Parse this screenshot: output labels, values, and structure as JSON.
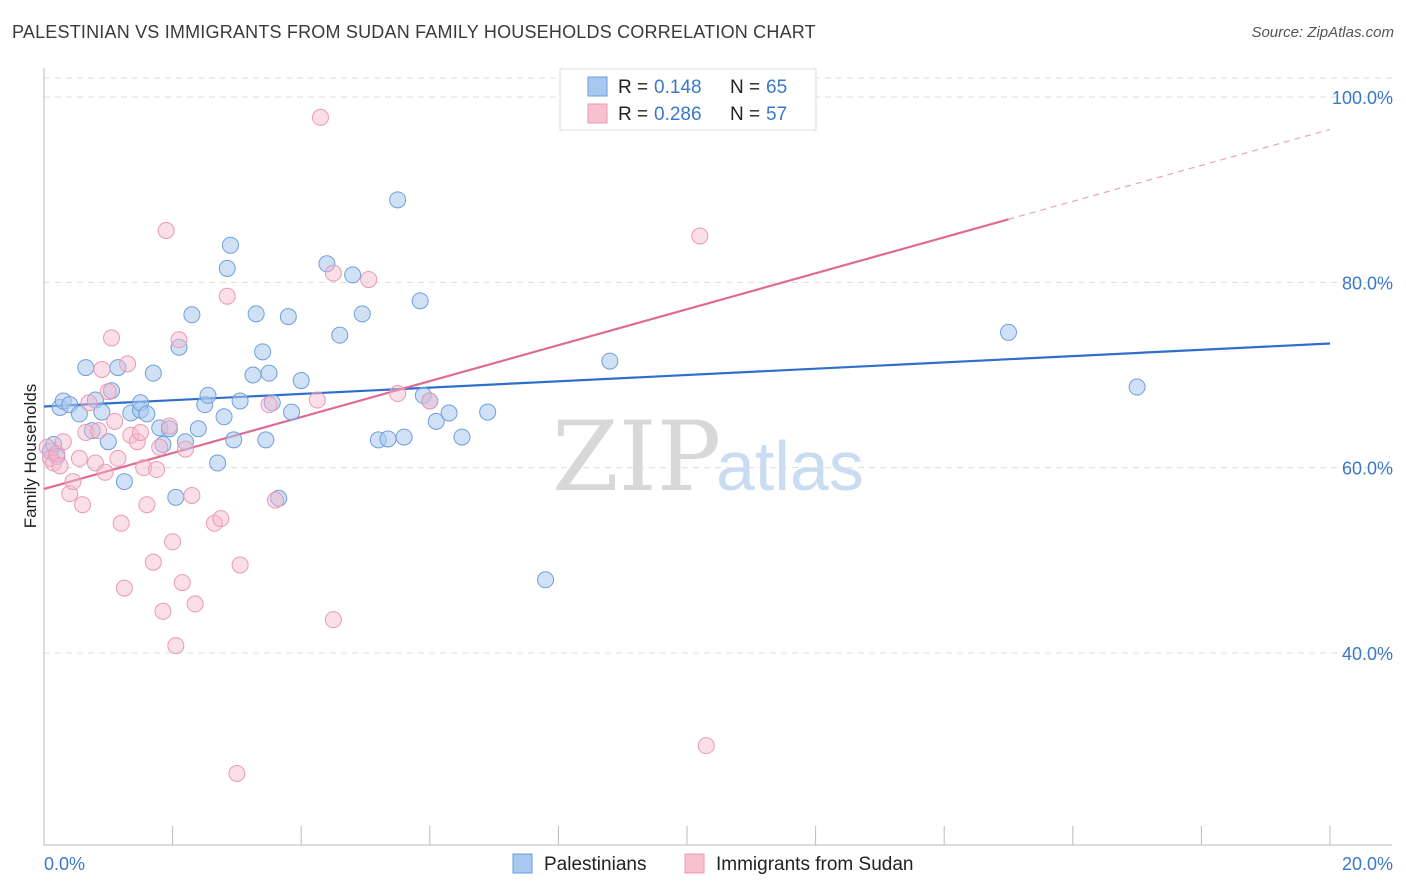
{
  "title": "PALESTINIAN VS IMMIGRANTS FROM SUDAN FAMILY HOUSEHOLDS CORRELATION CHART",
  "source": "Source: ZipAtlas.com",
  "colors": {
    "blue": "#3b78c9",
    "blue_fill": "#a9c8ef",
    "blue_line": "#2f6fcb",
    "pink_fill": "#f7b8cc",
    "pink_line": "#e06a93",
    "grid": "#dddddd"
  },
  "legend": {
    "rows": [
      {
        "r_label": "R =",
        "r_value": "0.148",
        "n_label": "N =",
        "n_value": "65"
      },
      {
        "r_label": "R =",
        "r_value": "0.286",
        "n_label": "N =",
        "n_value": "57"
      }
    ]
  },
  "watermark": {
    "zip": "ZIP",
    "atlas": "atlas"
  },
  "chart_data": {
    "type": "scatter",
    "title": "PALESTINIAN VS IMMIGRANTS FROM SUDAN FAMILY HOUSEHOLDS CORRELATION CHART",
    "xlabel": "",
    "ylabel": "Family Households",
    "x_tick_labels": [
      "0.0%",
      "20.0%"
    ],
    "y_tick_labels": [
      "40.0%",
      "60.0%",
      "80.0%",
      "100.0%"
    ],
    "y_ticks": [
      40,
      60,
      80,
      100
    ],
    "xlim": [
      0,
      20
    ],
    "ylim": [
      20,
      102
    ],
    "grid": true,
    "legend_position": "top-center",
    "series": [
      {
        "name": "Palestinians",
        "color": "#a9c8ef",
        "trend": {
          "x0": 0,
          "y0": 66.6,
          "x1": 20,
          "y1": 73.4,
          "dashed_to": 20
        },
        "points": [
          [
            0.1,
            61.8
          ],
          [
            0.15,
            62.5
          ],
          [
            0.2,
            61.2
          ],
          [
            0.25,
            66.5
          ],
          [
            0.3,
            67.2
          ],
          [
            0.4,
            66.8
          ],
          [
            0.55,
            65.8
          ],
          [
            0.65,
            70.8
          ],
          [
            0.75,
            64.0
          ],
          [
            0.8,
            67.3
          ],
          [
            0.9,
            66.0
          ],
          [
            1.0,
            62.8
          ],
          [
            1.05,
            68.3
          ],
          [
            1.15,
            70.8
          ],
          [
            1.25,
            58.5
          ],
          [
            1.35,
            65.9
          ],
          [
            1.5,
            66.2
          ],
          [
            1.5,
            67.0
          ],
          [
            1.6,
            65.8
          ],
          [
            1.7,
            70.2
          ],
          [
            1.8,
            64.3
          ],
          [
            1.85,
            62.5
          ],
          [
            1.95,
            64.2
          ],
          [
            2.05,
            56.8
          ],
          [
            2.1,
            73.0
          ],
          [
            2.2,
            62.8
          ],
          [
            2.3,
            76.5
          ],
          [
            2.4,
            64.2
          ],
          [
            2.5,
            66.8
          ],
          [
            2.55,
            67.8
          ],
          [
            2.7,
            60.5
          ],
          [
            2.8,
            65.5
          ],
          [
            2.85,
            81.5
          ],
          [
            2.9,
            84.0
          ],
          [
            2.95,
            63.0
          ],
          [
            3.05,
            67.2
          ],
          [
            3.25,
            70.0
          ],
          [
            3.3,
            76.6
          ],
          [
            3.4,
            72.5
          ],
          [
            3.45,
            63.0
          ],
          [
            3.5,
            70.2
          ],
          [
            3.55,
            67.0
          ],
          [
            3.65,
            56.7
          ],
          [
            3.8,
            76.3
          ],
          [
            3.85,
            66.0
          ],
          [
            4.0,
            69.4
          ],
          [
            4.4,
            82.0
          ],
          [
            4.6,
            74.3
          ],
          [
            4.8,
            80.8
          ],
          [
            4.95,
            76.6
          ],
          [
            5.2,
            63.0
          ],
          [
            5.35,
            63.1
          ],
          [
            5.5,
            88.9
          ],
          [
            5.6,
            63.3
          ],
          [
            5.85,
            78.0
          ],
          [
            5.9,
            67.8
          ],
          [
            6.0,
            67.2
          ],
          [
            6.1,
            65.0
          ],
          [
            6.3,
            65.9
          ],
          [
            6.5,
            63.3
          ],
          [
            6.9,
            66.0
          ],
          [
            7.8,
            47.9
          ],
          [
            8.8,
            71.5
          ],
          [
            15.0,
            74.6
          ],
          [
            17.0,
            68.7
          ]
        ]
      },
      {
        "name": "Immigrants from Sudan",
        "color": "#f7b8cc",
        "trend": {
          "x0": 0,
          "y0": 57.7,
          "x1": 15.0,
          "y1": 86.8,
          "dashed_to": 20,
          "dashed_y": 96.5
        },
        "points": [
          [
            0.05,
            62.2
          ],
          [
            0.1,
            61.0
          ],
          [
            0.15,
            60.5
          ],
          [
            0.2,
            61.5
          ],
          [
            0.25,
            60.2
          ],
          [
            0.3,
            62.8
          ],
          [
            0.4,
            57.2
          ],
          [
            0.45,
            58.5
          ],
          [
            0.55,
            61.0
          ],
          [
            0.6,
            56.0
          ],
          [
            0.65,
            63.8
          ],
          [
            0.7,
            67.0
          ],
          [
            0.8,
            60.5
          ],
          [
            0.85,
            64.0
          ],
          [
            0.9,
            70.6
          ],
          [
            0.95,
            59.5
          ],
          [
            1.0,
            68.2
          ],
          [
            1.05,
            74.0
          ],
          [
            1.1,
            65.0
          ],
          [
            1.15,
            61.0
          ],
          [
            1.2,
            54.0
          ],
          [
            1.25,
            47.0
          ],
          [
            1.3,
            71.2
          ],
          [
            1.35,
            63.5
          ],
          [
            1.45,
            62.8
          ],
          [
            1.5,
            63.8
          ],
          [
            1.55,
            60.0
          ],
          [
            1.6,
            56.0
          ],
          [
            1.7,
            49.8
          ],
          [
            1.75,
            59.8
          ],
          [
            1.8,
            62.2
          ],
          [
            1.85,
            44.5
          ],
          [
            1.9,
            85.6
          ],
          [
            1.95,
            64.5
          ],
          [
            2.0,
            52.0
          ],
          [
            2.05,
            40.8
          ],
          [
            2.1,
            73.8
          ],
          [
            2.15,
            47.6
          ],
          [
            2.2,
            62.0
          ],
          [
            2.3,
            57.0
          ],
          [
            2.35,
            45.3
          ],
          [
            2.65,
            54.0
          ],
          [
            2.75,
            54.5
          ],
          [
            2.85,
            78.5
          ],
          [
            3.0,
            27.0
          ],
          [
            3.05,
            49.5
          ],
          [
            3.5,
            66.8
          ],
          [
            3.6,
            56.5
          ],
          [
            4.25,
            67.3
          ],
          [
            4.3,
            97.8
          ],
          [
            4.5,
            43.6
          ],
          [
            4.5,
            81.0
          ],
          [
            5.05,
            80.3
          ],
          [
            5.5,
            68.0
          ],
          [
            6.0,
            67.2
          ],
          [
            10.2,
            85.0
          ],
          [
            10.3,
            30.0
          ]
        ]
      }
    ]
  },
  "bottom_legend": [
    "Palestinians",
    "Immigrants from Sudan"
  ]
}
